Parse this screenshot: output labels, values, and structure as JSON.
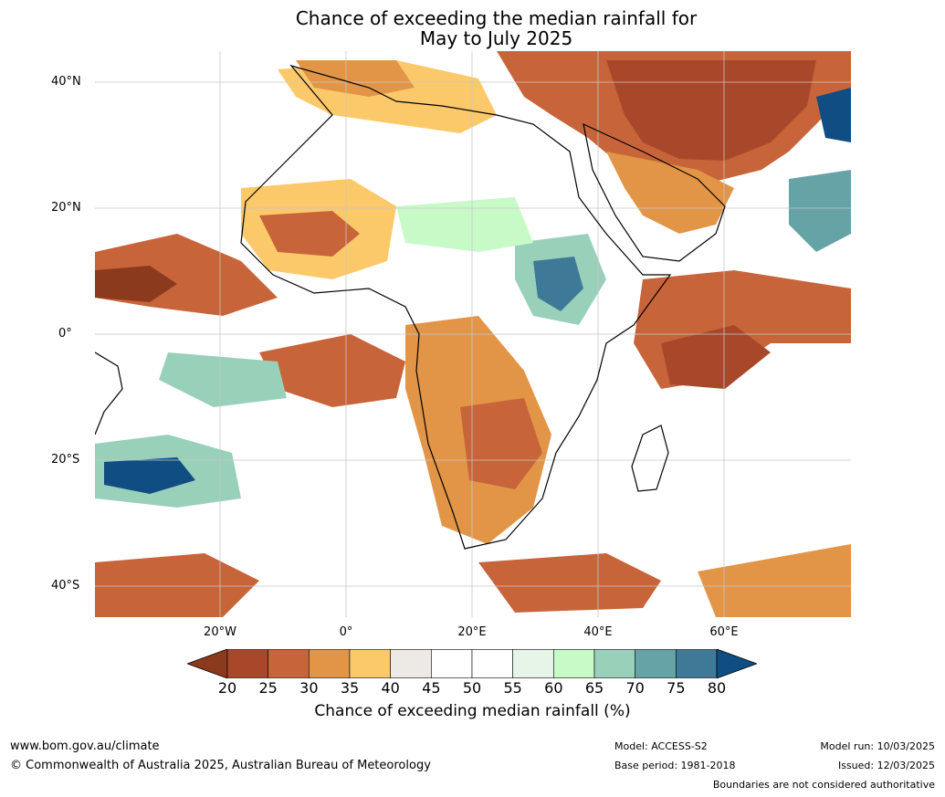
{
  "title": {
    "line1": "Chance of exceeding the median rainfall for",
    "line2": "May to July 2025"
  },
  "axes": {
    "lat_labels": [
      "40°N",
      "20°N",
      "0°",
      "20°S",
      "40°S"
    ],
    "lon_labels": [
      "20°W",
      "0°",
      "20°E",
      "40°E",
      "60°E"
    ]
  },
  "colorbar": {
    "ticks": [
      "20",
      "25",
      "30",
      "35",
      "40",
      "45",
      "50",
      "55",
      "60",
      "65",
      "70",
      "75",
      "80"
    ],
    "colors": [
      "#8c3a1d",
      "#a9472a",
      "#c8643a",
      "#e29547",
      "#fcc96a",
      "#edeae5",
      "#ffffff",
      "#ffffff",
      "#e6f5e8",
      "#c8fac8",
      "#99d0ba",
      "#65a3a6",
      "#3f7998",
      "#0f4d83"
    ],
    "label": "Chance of exceeding median rainfall (%)"
  },
  "footer": {
    "website": "www.bom.gov.au/climate",
    "copyright": "© Commonwealth of Australia 2025, Australian Bureau of Meteorology",
    "model": "Model: ACCESS-S2",
    "base_period": "Base period: 1981-2018",
    "model_run": "Model run: 10/03/2025",
    "issued": "Issued: 12/03/2025",
    "disclaimer": "Boundaries are not considered authoritative"
  }
}
